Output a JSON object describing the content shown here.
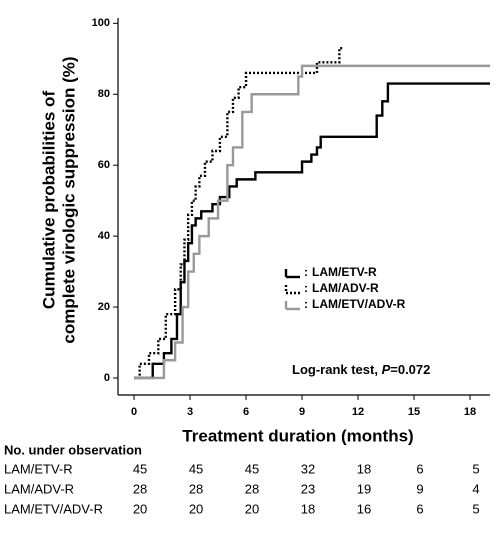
{
  "chart_data": {
    "type": "line",
    "step": true,
    "xlabel": "Treatment duration (months)",
    "ylabel": [
      "Cumulative probabilities of",
      "complete virologic suppression (%)"
    ],
    "xlim": [
      -0.86,
      19.07
    ],
    "ylim": [
      -4.8,
      101.5
    ],
    "xticks": [
      0,
      3,
      6,
      9,
      12,
      15,
      18
    ],
    "yticks": [
      0,
      20,
      40,
      60,
      80,
      100
    ],
    "legend_prefix": ":",
    "series": [
      {
        "name": "LAM/ETV-R",
        "color": "#000000",
        "dash": "none",
        "x": [
          0,
          1.0,
          1.6,
          2.0,
          2.3,
          2.5,
          2.7,
          2.9,
          3.1,
          3.3,
          3.6,
          4.2,
          4.6,
          5.1,
          5.5,
          6.5,
          9.0,
          9.5,
          9.8,
          10.0,
          13.0,
          13.3,
          13.6,
          19.07
        ],
        "values": [
          0,
          4,
          7,
          11,
          18,
          27,
          33,
          38,
          43,
          45,
          47,
          49,
          51,
          54,
          56,
          58,
          61,
          63,
          65,
          68,
          74,
          78,
          83,
          83
        ]
      },
      {
        "name": "LAM/ADV-R",
        "color": "#000000",
        "dash": "2,2",
        "x": [
          0,
          0.3,
          0.8,
          1.3,
          1.7,
          2.2,
          2.5,
          2.7,
          2.9,
          3.1,
          3.3,
          3.5,
          3.8,
          4.2,
          4.6,
          5.0,
          5.3,
          5.6,
          6.0,
          9.0,
          9.8,
          11.0,
          11.2
        ],
        "values": [
          0,
          4,
          7,
          11,
          18,
          25,
          32,
          39,
          46,
          50,
          54,
          57,
          61,
          64,
          68,
          75,
          79,
          82,
          86,
          86,
          89,
          93,
          93
        ]
      },
      {
        "name": "LAM/ETV/ADV-R",
        "color": "#999999",
        "dash": "none",
        "x": [
          0,
          1.6,
          2.2,
          2.6,
          2.9,
          3.2,
          3.5,
          4.0,
          4.5,
          5.0,
          5.3,
          5.8,
          6.3,
          8.8,
          9.0,
          19.07
        ],
        "values": [
          0,
          5,
          10,
          20,
          30,
          35,
          40,
          45,
          50,
          60,
          65,
          75,
          80,
          85,
          88,
          88
        ]
      }
    ],
    "annotation": {
      "parts": [
        "Log-rank test, ",
        "P",
        "=0.072"
      ]
    },
    "risk_table": {
      "title": "No. under observation",
      "rows": [
        [
          45,
          45,
          45,
          32,
          18,
          6,
          5
        ],
        [
          28,
          28,
          28,
          23,
          19,
          9,
          4
        ],
        [
          20,
          20,
          20,
          18,
          16,
          6,
          5
        ]
      ]
    }
  }
}
